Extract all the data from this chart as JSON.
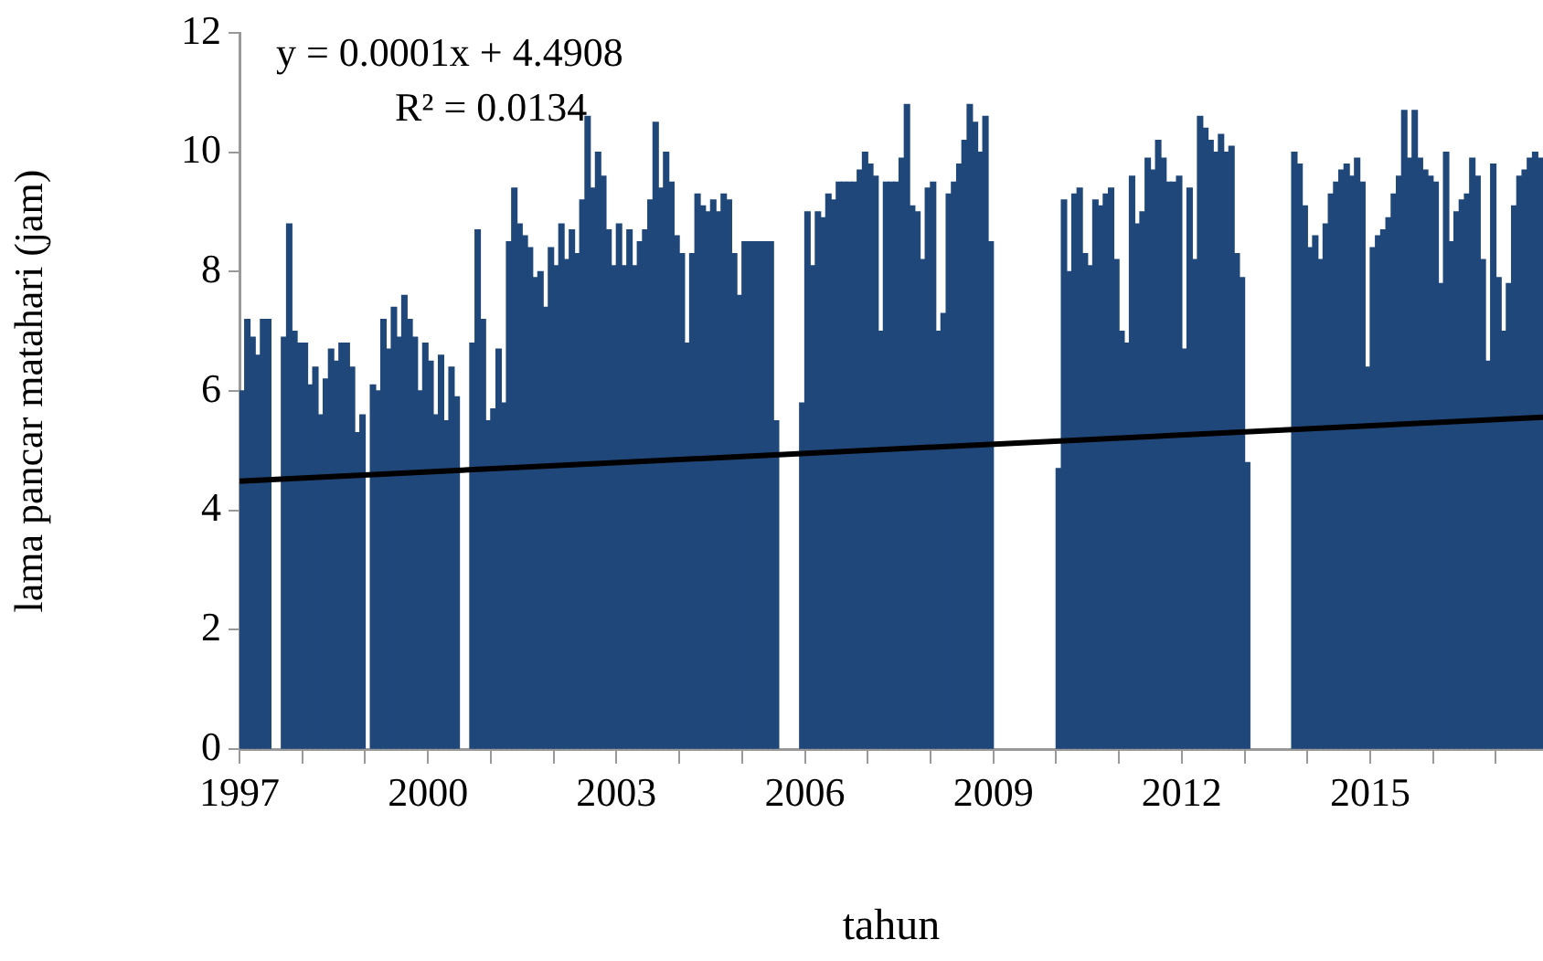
{
  "chart_data": {
    "type": "bar",
    "xlabel": "tahun",
    "ylabel": "lama pancar matahari (jam)",
    "annotations": [
      "y = 0.0001x + 4.4908",
      "R² = 0.0134"
    ],
    "xlim": [
      "1997-01",
      "2017-10"
    ],
    "xticks": [
      "1997",
      {
        "value": "1998",
        "label": null
      },
      {
        "value": "1999",
        "label": null
      },
      "2000",
      {
        "value": "2001",
        "label": null
      },
      {
        "value": "2002",
        "label": null
      },
      "2003",
      {
        "value": "2004",
        "label": null
      },
      {
        "value": "2005",
        "label": null
      },
      "2006",
      {
        "value": "2007",
        "label": null
      },
      {
        "value": "2008",
        "label": null
      },
      "2009",
      {
        "value": "2010",
        "label": null
      },
      {
        "value": "2011",
        "label": null
      },
      "2012",
      {
        "value": "2013",
        "label": null
      },
      {
        "value": "2014",
        "label": null
      },
      "2015",
      {
        "value": "2016",
        "label": null
      },
      {
        "value": "2017",
        "label": null
      }
    ],
    "ylim": [
      0,
      12
    ],
    "yticks": [
      0,
      2,
      4,
      6,
      8,
      10,
      12
    ],
    "grid": false,
    "legend": false,
    "x": [
      "1997-01",
      "1997-02",
      "1997-03",
      "1997-04",
      "1997-05",
      "1997-06",
      "1997-07",
      "1997-08",
      "1997-09",
      "1997-10",
      "1997-11",
      "1997-12",
      "1998-01",
      "1998-02",
      "1998-03",
      "1998-04",
      "1998-05",
      "1998-06",
      "1998-07",
      "1998-08",
      "1998-09",
      "1998-10",
      "1998-11",
      "1998-12",
      "1999-01",
      "1999-02",
      "1999-03",
      "1999-04",
      "1999-05",
      "1999-06",
      "1999-07",
      "1999-08",
      "1999-09",
      "1999-10",
      "1999-11",
      "1999-12",
      "2000-01",
      "2000-02",
      "2000-03",
      "2000-04",
      "2000-05",
      "2000-06",
      "2000-07",
      "2000-08",
      "2000-09",
      "2000-10",
      "2000-11",
      "2000-12",
      "2001-01",
      "2001-02",
      "2001-03",
      "2001-04",
      "2001-05",
      "2001-06",
      "2001-07",
      "2001-08",
      "2001-09",
      "2001-10",
      "2001-11",
      "2001-12",
      "2002-01",
      "2002-02",
      "2002-03",
      "2002-04",
      "2002-05",
      "2002-06",
      "2002-07",
      "2002-08",
      "2002-09",
      "2002-10",
      "2002-11",
      "2002-12",
      "2003-01",
      "2003-02",
      "2003-03",
      "2003-04",
      "2003-05",
      "2003-06",
      "2003-07",
      "2003-08",
      "2003-09",
      "2003-10",
      "2003-11",
      "2003-12",
      "2004-01",
      "2004-02",
      "2004-03",
      "2004-04",
      "2004-05",
      "2004-06",
      "2004-07",
      "2004-08",
      "2004-09",
      "2004-10",
      "2004-11",
      "2004-12",
      "2005-01",
      "2005-02",
      "2005-03",
      "2005-04",
      "2005-05",
      "2005-06",
      "2005-07",
      "2005-08",
      "2005-09",
      "2005-10",
      "2005-11",
      "2005-12",
      "2006-01",
      "2006-02",
      "2006-03",
      "2006-04",
      "2006-05",
      "2006-06",
      "2006-07",
      "2006-08",
      "2006-09",
      "2006-10",
      "2006-11",
      "2006-12",
      "2007-01",
      "2007-02",
      "2007-03",
      "2007-04",
      "2007-05",
      "2007-06",
      "2007-07",
      "2007-08",
      "2007-09",
      "2007-10",
      "2007-11",
      "2007-12",
      "2008-01",
      "2008-02",
      "2008-03",
      "2008-04",
      "2008-05",
      "2008-06",
      "2008-07",
      "2008-08",
      "2008-09",
      "2008-10",
      "2008-11",
      "2008-12",
      "2009-01",
      "2009-02",
      "2009-03",
      "2009-04",
      "2009-05",
      "2009-06",
      "2009-07",
      "2009-08",
      "2009-09",
      "2009-10",
      "2009-11",
      "2009-12",
      "2010-01",
      "2010-02",
      "2010-03",
      "2010-04",
      "2010-05",
      "2010-06",
      "2010-07",
      "2010-08",
      "2010-09",
      "2010-10",
      "2010-11",
      "2010-12",
      "2011-01",
      "2011-02",
      "2011-03",
      "2011-04",
      "2011-05",
      "2011-06",
      "2011-07",
      "2011-08",
      "2011-09",
      "2011-10",
      "2011-11",
      "2011-12",
      "2012-01",
      "2012-02",
      "2012-03",
      "2012-04",
      "2012-05",
      "2012-06",
      "2012-07",
      "2012-08",
      "2012-09",
      "2012-10",
      "2012-11",
      "2012-12",
      "2013-01",
      "2013-02",
      "2013-03",
      "2013-04",
      "2013-05",
      "2013-06",
      "2013-07",
      "2013-08",
      "2013-09",
      "2013-10",
      "2013-11",
      "2013-12",
      "2014-01",
      "2014-02",
      "2014-03",
      "2014-04",
      "2014-05",
      "2014-06",
      "2014-07",
      "2014-08",
      "2014-09",
      "2014-10",
      "2014-11",
      "2014-12",
      "2015-01",
      "2015-02",
      "2015-03",
      "2015-04",
      "2015-05",
      "2015-06",
      "2015-07",
      "2015-08",
      "2015-09",
      "2015-10",
      "2015-11",
      "2015-12",
      "2016-01",
      "2016-02",
      "2016-03",
      "2016-04",
      "2016-05",
      "2016-06",
      "2016-07",
      "2016-08",
      "2016-09",
      "2016-10",
      "2016-11",
      "2016-12",
      "2017-01",
      "2017-02",
      "2017-03",
      "2017-04",
      "2017-05",
      "2017-06",
      "2017-07",
      "2017-08",
      "2017-09"
    ],
    "series": [
      {
        "color": "#1f477a",
        "values": [
          6.0,
          7.2,
          6.9,
          6.6,
          7.2,
          7.2,
          null,
          null,
          6.9,
          8.8,
          7.0,
          6.8,
          6.8,
          6.1,
          6.4,
          5.6,
          6.2,
          6.7,
          6.5,
          6.8,
          6.8,
          6.4,
          5.3,
          5.6,
          null,
          6.1,
          6.0,
          7.2,
          6.7,
          7.4,
          6.9,
          7.6,
          7.2,
          6.9,
          6.0,
          6.8,
          6.5,
          5.6,
          6.6,
          5.5,
          6.4,
          5.9,
          null,
          null,
          6.8,
          8.7,
          7.2,
          5.5,
          5.7,
          6.7,
          5.8,
          8.5,
          9.4,
          8.8,
          8.6,
          8.4,
          7.9,
          8.0,
          7.4,
          8.4,
          8.1,
          8.8,
          8.2,
          8.7,
          8.3,
          9.2,
          10.6,
          9.4,
          10.0,
          9.6,
          8.7,
          8.1,
          8.8,
          8.1,
          8.7,
          8.1,
          8.5,
          8.7,
          9.2,
          10.5,
          9.4,
          10.0,
          9.5,
          8.6,
          8.3,
          6.8,
          8.3,
          9.3,
          9.1,
          9.0,
          9.2,
          9.0,
          9.3,
          9.2,
          8.3,
          7.6,
          8.5,
          8.5,
          8.5,
          8.5,
          8.5,
          8.5,
          5.5,
          null,
          null,
          null,
          null,
          5.8,
          9.0,
          8.1,
          9.0,
          8.9,
          9.3,
          9.2,
          9.5,
          9.5,
          9.5,
          9.5,
          9.7,
          10.0,
          9.8,
          9.6,
          7.0,
          9.5,
          9.5,
          9.5,
          9.9,
          10.8,
          9.1,
          9.0,
          8.2,
          9.4,
          9.5,
          7.0,
          7.3,
          9.3,
          9.5,
          9.8,
          10.2,
          10.8,
          10.5,
          10.0,
          10.6,
          8.5,
          null,
          null,
          null,
          null,
          null,
          null,
          null,
          null,
          null,
          null,
          null,
          null,
          4.7,
          9.2,
          8.0,
          9.3,
          9.4,
          8.3,
          8.1,
          9.2,
          9.1,
          9.3,
          9.4,
          8.2,
          7.0,
          6.8,
          9.6,
          8.8,
          9.0,
          9.9,
          9.7,
          10.2,
          9.9,
          9.5,
          9.5,
          9.6,
          6.7,
          9.4,
          8.2,
          10.6,
          10.4,
          10.2,
          10.0,
          10.3,
          10.0,
          10.1,
          8.3,
          7.9,
          4.8,
          null,
          null,
          null,
          null,
          null,
          null,
          null,
          null,
          10.0,
          9.8,
          9.1,
          8.4,
          8.6,
          8.2,
          8.8,
          9.3,
          9.5,
          9.7,
          9.8,
          9.6,
          9.9,
          9.5,
          6.4,
          8.4,
          8.6,
          8.7,
          8.9,
          9.3,
          9.6,
          10.7,
          9.9,
          10.7,
          9.9,
          9.7,
          9.6,
          9.5,
          7.8,
          10.0,
          8.5,
          9.0,
          9.2,
          9.3,
          9.9,
          9.6,
          8.2,
          6.5,
          9.8,
          7.9,
          7.0,
          7.8,
          9.1,
          9.6,
          9.7,
          9.9,
          10.0,
          9.9
        ]
      },
      {
        "type": "line",
        "color": "#000000",
        "x": [
          "1997-01",
          "2017-10"
        ],
        "values": [
          4.49,
          5.56
        ]
      }
    ]
  }
}
